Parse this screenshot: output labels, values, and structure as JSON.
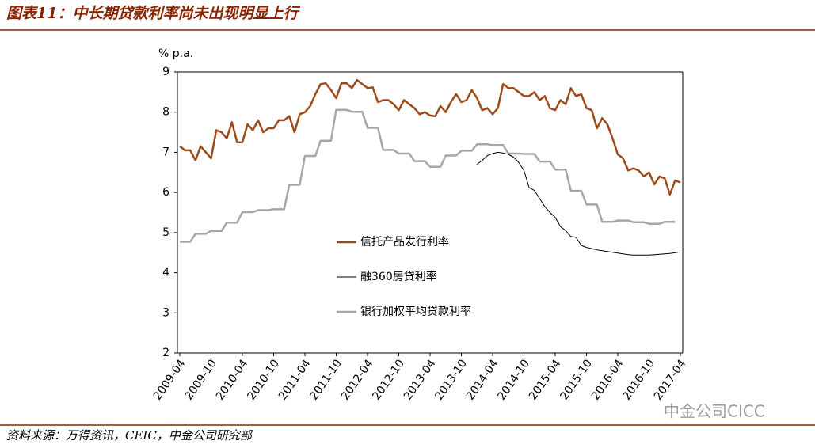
{
  "title": "图表11：中长期贷款利率尚未出现明显上行",
  "source": "资料来源：万得资讯，CEIC，中金公司研究部",
  "watermark": "中金公司CICC",
  "chart_data": {
    "type": "line",
    "y_label": "% p.a.",
    "ylim": [
      2,
      9
    ],
    "yticks": [
      2,
      3,
      4,
      5,
      6,
      7,
      8,
      9
    ],
    "grid": false,
    "categories": [
      "2009-04",
      null,
      null,
      null,
      null,
      null,
      "2009-10",
      null,
      null,
      null,
      null,
      null,
      "2010-04",
      null,
      null,
      null,
      null,
      null,
      "2010-10",
      null,
      null,
      null,
      null,
      null,
      "2011-04",
      null,
      null,
      null,
      null,
      null,
      "2011-10",
      null,
      null,
      null,
      null,
      null,
      "2012-04",
      null,
      null,
      null,
      null,
      null,
      "2012-10",
      null,
      null,
      null,
      null,
      null,
      "2013-04",
      null,
      null,
      null,
      null,
      null,
      "2013-10",
      null,
      null,
      null,
      null,
      null,
      "2014-04",
      null,
      null,
      null,
      null,
      null,
      "2014-10",
      null,
      null,
      null,
      null,
      null,
      "2015-04",
      null,
      null,
      null,
      null,
      null,
      "2015-10",
      null,
      null,
      null,
      null,
      null,
      "2016-04",
      null,
      null,
      null,
      null,
      null,
      "2016-10",
      null,
      null,
      null,
      null,
      null,
      "2017-04"
    ],
    "series": [
      {
        "name": "信托产品发行利率",
        "color": "#9c4a1a",
        "width": 2.5,
        "values": [
          7.15,
          7.05,
          7.05,
          6.8,
          7.15,
          7.0,
          6.85,
          7.55,
          7.5,
          7.35,
          7.75,
          7.25,
          7.25,
          7.7,
          7.55,
          7.8,
          7.5,
          7.6,
          7.6,
          7.8,
          7.8,
          7.9,
          7.5,
          7.95,
          8.0,
          8.15,
          8.45,
          8.7,
          8.72,
          8.55,
          8.35,
          8.72,
          8.72,
          8.6,
          8.8,
          8.7,
          8.6,
          8.62,
          8.25,
          8.3,
          8.3,
          8.2,
          8.05,
          8.3,
          8.2,
          8.1,
          7.95,
          8.0,
          7.92,
          7.9,
          8.15,
          8.0,
          8.25,
          8.45,
          8.25,
          8.3,
          8.55,
          8.35,
          8.05,
          8.1,
          7.95,
          8.1,
          8.7,
          8.6,
          8.6,
          8.5,
          8.4,
          8.4,
          8.5,
          8.3,
          8.4,
          8.1,
          8.05,
          8.3,
          8.2,
          8.6,
          8.4,
          8.45,
          8.1,
          8.05,
          7.6,
          7.85,
          7.7,
          7.35,
          6.95,
          6.85,
          6.55,
          6.6,
          6.55,
          6.4,
          6.5,
          6.2,
          6.4,
          6.35,
          5.95,
          6.3,
          6.25
        ]
      },
      {
        "name": "融360房贷利率",
        "color": "#000000",
        "width": 1,
        "values": [
          null,
          null,
          null,
          null,
          null,
          null,
          null,
          null,
          null,
          null,
          null,
          null,
          null,
          null,
          null,
          null,
          null,
          null,
          null,
          null,
          null,
          null,
          null,
          null,
          null,
          null,
          null,
          null,
          null,
          null,
          null,
          null,
          null,
          null,
          null,
          null,
          null,
          null,
          null,
          null,
          null,
          null,
          null,
          null,
          null,
          null,
          null,
          null,
          null,
          null,
          null,
          null,
          null,
          null,
          null,
          null,
          null,
          6.7,
          6.8,
          6.92,
          6.97,
          7.0,
          6.98,
          6.95,
          6.88,
          6.75,
          6.55,
          6.12,
          6.05,
          5.85,
          5.65,
          5.5,
          5.38,
          5.15,
          5.05,
          4.9,
          4.88,
          4.68,
          4.63,
          4.6,
          4.57,
          4.55,
          4.53,
          4.51,
          4.49,
          4.47,
          4.45,
          4.44,
          4.44,
          4.44,
          4.44,
          4.45,
          4.46,
          4.47,
          4.48,
          4.5,
          4.52
        ]
      },
      {
        "name": "银行加权平均贷款利率",
        "color": "#a6a6a6",
        "width": 2.5,
        "values": [
          4.77,
          4.77,
          4.77,
          4.97,
          4.97,
          4.97,
          5.04,
          5.04,
          5.04,
          5.25,
          5.25,
          5.25,
          5.51,
          5.51,
          5.51,
          5.56,
          5.56,
          5.56,
          5.58,
          5.58,
          5.58,
          6.19,
          6.19,
          6.19,
          6.91,
          6.91,
          6.91,
          7.29,
          7.29,
          7.29,
          8.06,
          8.06,
          8.06,
          8.01,
          8.01,
          8.01,
          7.61,
          7.61,
          7.61,
          7.06,
          7.06,
          7.06,
          6.97,
          6.97,
          6.97,
          6.78,
          6.78,
          6.78,
          6.64,
          6.64,
          6.64,
          6.92,
          6.92,
          6.92,
          7.04,
          7.04,
          7.04,
          7.2,
          7.2,
          7.2,
          7.18,
          7.18,
          7.18,
          6.97,
          6.97,
          6.97,
          6.96,
          6.96,
          6.96,
          6.77,
          6.77,
          6.77,
          6.57,
          6.57,
          6.57,
          6.04,
          6.04,
          6.04,
          5.7,
          5.7,
          5.7,
          5.27,
          5.27,
          5.27,
          5.3,
          5.3,
          5.3,
          5.26,
          5.26,
          5.26,
          5.22,
          5.22,
          5.22,
          5.27,
          5.27,
          5.27,
          null
        ]
      }
    ]
  }
}
